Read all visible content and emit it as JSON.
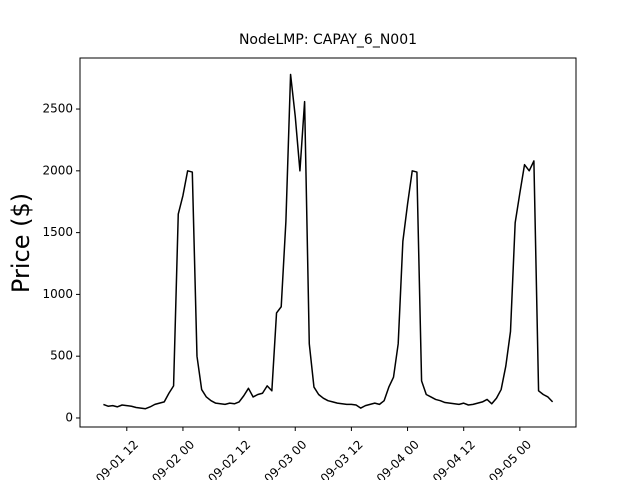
{
  "chart_data": {
    "type": "line",
    "title": "NodeLMP: CAPAY_6_N001",
    "y_label": "Price ($)",
    "x": [
      "09-01 07",
      "09-01 08",
      "09-01 09",
      "09-01 10",
      "09-01 11",
      "09-01 12",
      "09-01 13",
      "09-01 14",
      "09-01 15",
      "09-01 16",
      "09-01 17",
      "09-01 18",
      "09-01 19",
      "09-01 20",
      "09-01 21",
      "09-01 22",
      "09-01 23",
      "09-02 00",
      "09-02 01",
      "09-02 02",
      "09-02 03",
      "09-02 04",
      "09-02 05",
      "09-02 06",
      "09-02 07",
      "09-02 08",
      "09-02 09",
      "09-02 10",
      "09-02 11",
      "09-02 12",
      "09-02 13",
      "09-02 14",
      "09-02 15",
      "09-02 16",
      "09-02 17",
      "09-02 18",
      "09-02 19",
      "09-02 20",
      "09-02 21",
      "09-02 22",
      "09-02 23",
      "09-03 00",
      "09-03 01",
      "09-03 02",
      "09-03 03",
      "09-03 04",
      "09-03 05",
      "09-03 06",
      "09-03 07",
      "09-03 08",
      "09-03 09",
      "09-03 10",
      "09-03 11",
      "09-03 12",
      "09-03 13",
      "09-03 14",
      "09-03 15",
      "09-03 16",
      "09-03 17",
      "09-03 18",
      "09-03 19",
      "09-03 20",
      "09-03 21",
      "09-03 22",
      "09-03 23",
      "09-04 00",
      "09-04 01",
      "09-04 02",
      "09-04 03",
      "09-04 04",
      "09-04 05",
      "09-04 06",
      "09-04 07",
      "09-04 08",
      "09-04 09",
      "09-04 10",
      "09-04 11",
      "09-04 12",
      "09-04 13",
      "09-04 14",
      "09-04 15",
      "09-04 16",
      "09-04 17",
      "09-04 18",
      "09-04 19",
      "09-04 20",
      "09-04 21",
      "09-04 22",
      "09-04 23",
      "09-05 00",
      "09-05 01",
      "09-05 02",
      "09-05 03",
      "09-05 04",
      "09-05 05",
      "09-05 06",
      "09-05 07"
    ],
    "series": [
      {
        "color": "#000000",
        "values": [
          110,
          95,
          100,
          90,
          105,
          100,
          95,
          85,
          80,
          75,
          90,
          110,
          120,
          130,
          200,
          260,
          1650,
          1800,
          2000,
          1990,
          500,
          230,
          170,
          140,
          120,
          115,
          110,
          120,
          115,
          130,
          180,
          240,
          170,
          190,
          200,
          260,
          220,
          850,
          900,
          1590,
          2780,
          2440,
          2000,
          2560,
          600,
          250,
          190,
          160,
          140,
          130,
          120,
          115,
          110,
          110,
          105,
          80,
          100,
          110,
          120,
          110,
          140,
          250,
          330,
          600,
          1430,
          1730,
          2000,
          1990,
          300,
          190,
          170,
          150,
          140,
          125,
          120,
          115,
          110,
          120,
          105,
          110,
          120,
          130,
          150,
          115,
          160,
          230,
          420,
          700,
          1580,
          1820,
          2050,
          2000,
          2080,
          220,
          190,
          170,
          130
        ]
      }
    ],
    "xlim": [
      "09-01 02",
      "09-05 12"
    ],
    "xticks": [
      "09-01 12",
      "09-02 00",
      "09-02 12",
      "09-03 00",
      "09-03 12",
      "09-04 00",
      "09-04 12",
      "09-05 00"
    ],
    "ylim": [
      -73,
      2913
    ],
    "yticks": [
      0,
      500,
      1000,
      1500,
      2000,
      2500
    ],
    "grid": false
  }
}
